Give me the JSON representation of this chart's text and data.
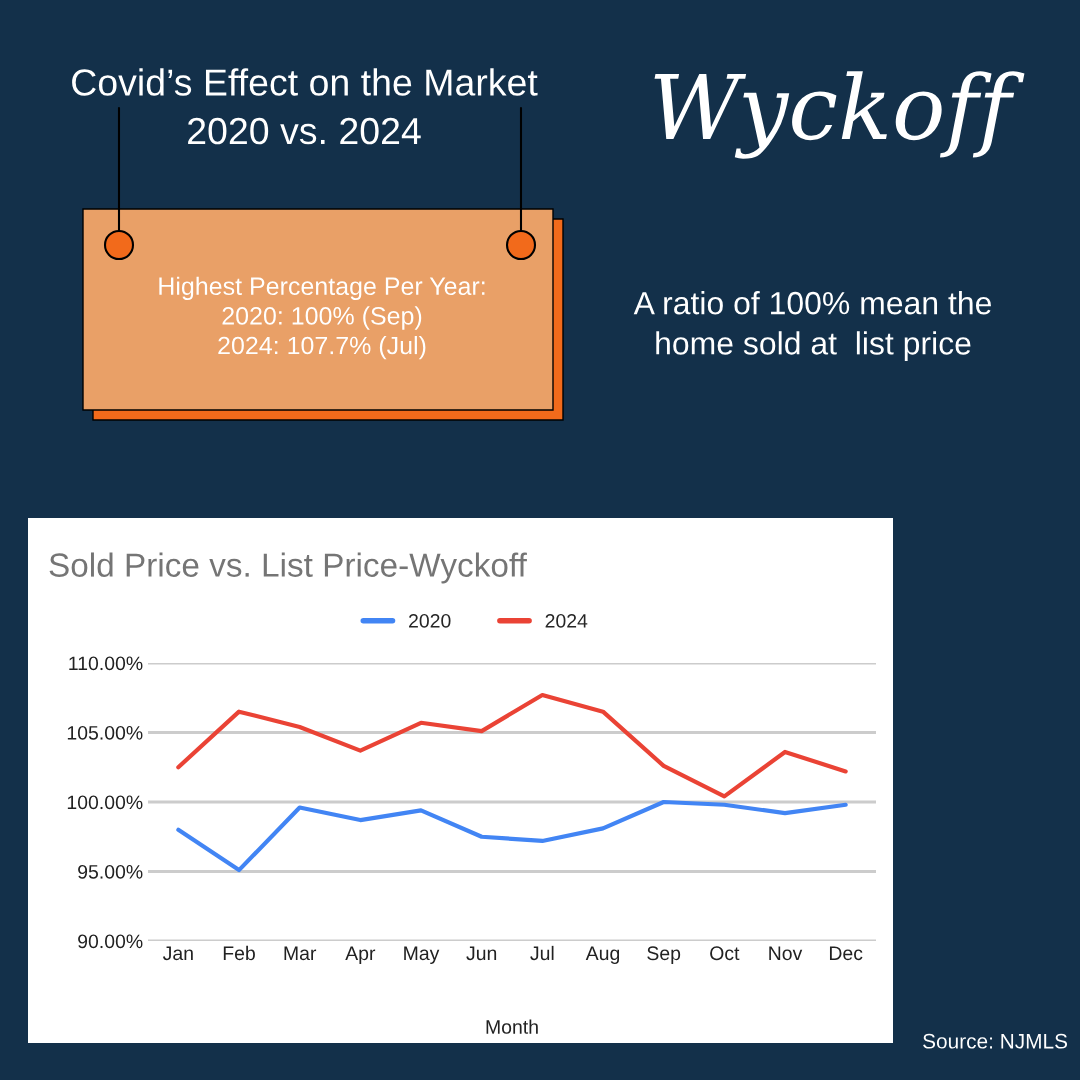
{
  "chart_data": {
    "type": "line",
    "title": "Sold Price vs. List Price-Wyckoff",
    "xlabel": "Month",
    "categories": [
      "Jan",
      "Feb",
      "Mar",
      "Apr",
      "May",
      "Jun",
      "Jul",
      "Aug",
      "Sep",
      "Oct",
      "Nov",
      "Dec"
    ],
    "series": [
      {
        "name": "2020",
        "color": "#4285f4",
        "values": [
          98.0,
          95.1,
          99.6,
          98.7,
          99.4,
          97.5,
          97.2,
          98.1,
          100.0,
          99.8,
          99.2,
          99.8
        ]
      },
      {
        "name": "2024",
        "color": "#ea4335",
        "values": [
          102.5,
          106.5,
          105.4,
          103.7,
          105.7,
          105.1,
          107.7,
          106.5,
          102.6,
          100.4,
          103.6,
          102.2
        ]
      }
    ],
    "ylim": [
      90,
      110
    ],
    "yticks": [
      {
        "value": 90,
        "label": "90.00%"
      },
      {
        "value": 95,
        "label": "95.00%"
      },
      {
        "value": 100,
        "label": "100.00%"
      },
      {
        "value": 105,
        "label": "105.00%"
      },
      {
        "value": 110,
        "label": "110.00%"
      }
    ],
    "grid": "y",
    "legend": "top",
    "marker": "none",
    "line_style": "solid",
    "annotations": [
      "Covid’s Effect on the Market\n2020 vs. 2024",
      "Wyckoff",
      "Highest Percentage Per Year:\n2020: 100% (Sep)\n2024: 107.7% (Jul)",
      "A ratio of 100% mean the\nhome sold at  list price",
      "Source: NJMLS"
    ]
  }
}
